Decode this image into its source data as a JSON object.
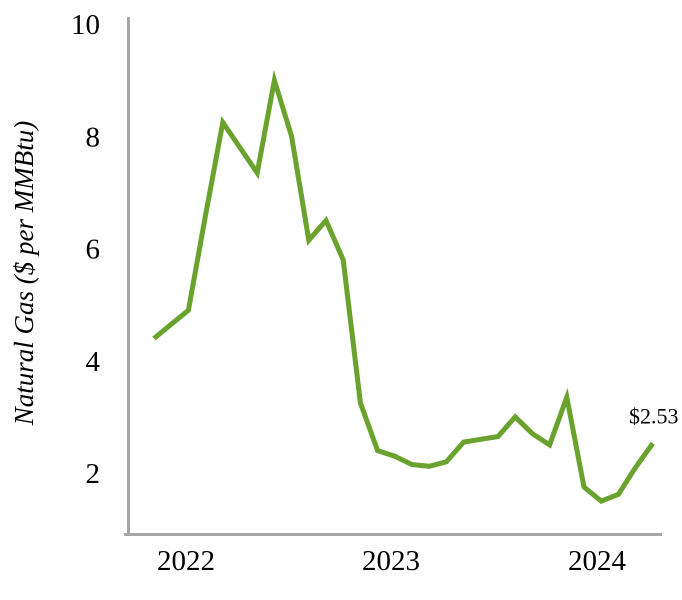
{
  "chart_data": {
    "type": "line",
    "title": "",
    "ylabel": "Natural Gas ($ per MMBtu)",
    "xlabel": "",
    "grid": false,
    "legend_position": "none",
    "ylim": [
      1,
      10
    ],
    "y_ticks": [
      2,
      4,
      6,
      8,
      10
    ],
    "x_year_labels": [
      "2022",
      "2023",
      "2024"
    ],
    "x": [
      "Jan-2022",
      "Feb-2022",
      "Mar-2022",
      "Apr-2022",
      "May-2022",
      "Jun-2022",
      "Jul-2022",
      "Aug-2022",
      "Sep-2022",
      "Oct-2022",
      "Nov-2022",
      "Dec-2022",
      "Jan-2023",
      "Feb-2023",
      "Mar-2023",
      "Apr-2023",
      "May-2023",
      "Jun-2023",
      "Jul-2023",
      "Aug-2023",
      "Sep-2023",
      "Oct-2023",
      "Nov-2023",
      "Dec-2023",
      "Jan-2024",
      "Feb-2024",
      "Mar-2024",
      "Apr-2024",
      "May-2024",
      "Jun-2024"
    ],
    "values": [
      4.4,
      4.65,
      4.9,
      6.6,
      8.25,
      7.8,
      7.35,
      9.0,
      8.0,
      6.15,
      6.5,
      5.8,
      3.25,
      2.4,
      2.3,
      2.15,
      2.12,
      2.2,
      2.55,
      2.6,
      2.65,
      3.0,
      2.7,
      2.5,
      3.35,
      1.75,
      1.5,
      1.62,
      2.1,
      2.53
    ],
    "series_name": "Natural Gas price",
    "end_label": "$2.53",
    "line_color": "#69A22C",
    "axis_color": "#A6A6A6",
    "text_color": "#000000"
  }
}
